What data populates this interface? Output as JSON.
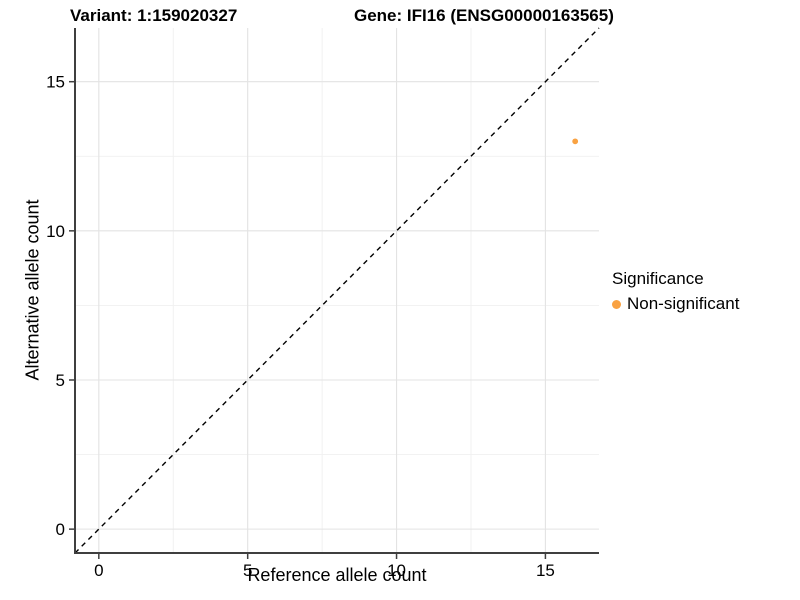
{
  "titles": {
    "variant": "Variant: 1:159020327",
    "gene": "Gene: IFI16 (ENSG00000163565)"
  },
  "chart_data": {
    "type": "scatter",
    "title_left": "Variant: 1:159020327",
    "title_right": "Gene: IFI16 (ENSG00000163565)",
    "xlabel": "Reference allele count",
    "ylabel": "Alternative allele count",
    "xlim": [
      -0.8,
      16.8
    ],
    "ylim": [
      -0.8,
      16.8
    ],
    "x_ticks": [
      0,
      5,
      10,
      15
    ],
    "y_ticks": [
      0,
      5,
      10,
      15
    ],
    "x_minor_gridlines": [
      2.5,
      7.5,
      12.5
    ],
    "y_minor_gridlines": [
      2.5,
      7.5,
      12.5
    ],
    "grid": true,
    "identity_line": {
      "slope": 1,
      "intercept": 0,
      "style": "dashed",
      "color": "#000000"
    },
    "series": [
      {
        "name": "Non-significant",
        "color": "#F9A242",
        "points": [
          {
            "x": 16,
            "y": 13
          }
        ]
      }
    ],
    "legend": {
      "title": "Significance",
      "position": "right",
      "items": [
        {
          "label": "Non-significant",
          "color": "#F9A242"
        }
      ]
    }
  },
  "colors": {
    "point_orange": "#F9A242",
    "axis_line": "#3f3f3f",
    "major_grid": "#e3e3e3",
    "minor_grid": "#f0f0f0",
    "background": "#ffffff"
  }
}
